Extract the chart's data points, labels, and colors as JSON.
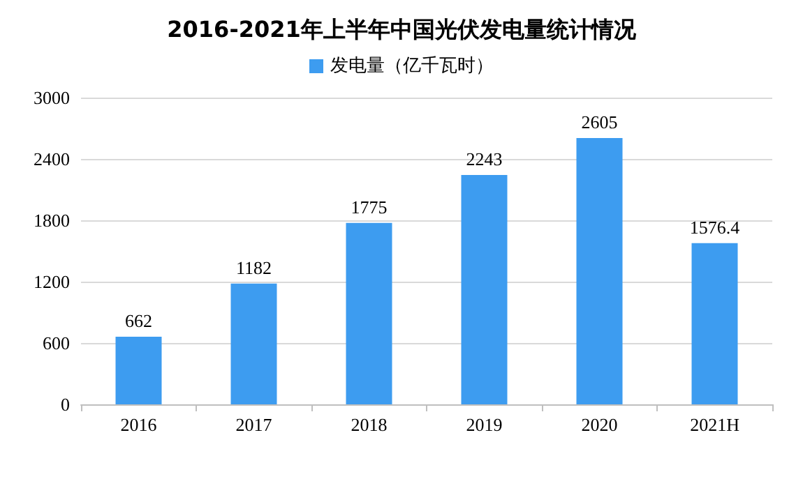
{
  "chart_data": {
    "type": "bar",
    "title": "2016-2021年上半年中国光伏发电量统计情况",
    "categories": [
      "2016",
      "2017",
      "2018",
      "2019",
      "2020",
      "2021H"
    ],
    "series": [
      {
        "name": "发电量（亿千瓦时）",
        "color": "#3d9cf0",
        "values": [
          662,
          1182,
          1775,
          2243,
          2605,
          1576.4
        ]
      }
    ],
    "ylim": [
      0,
      3000
    ],
    "yticks": [
      0,
      600,
      1200,
      1800,
      2400,
      3000
    ],
    "grid": "y",
    "legend": "top",
    "data_labels": true
  }
}
